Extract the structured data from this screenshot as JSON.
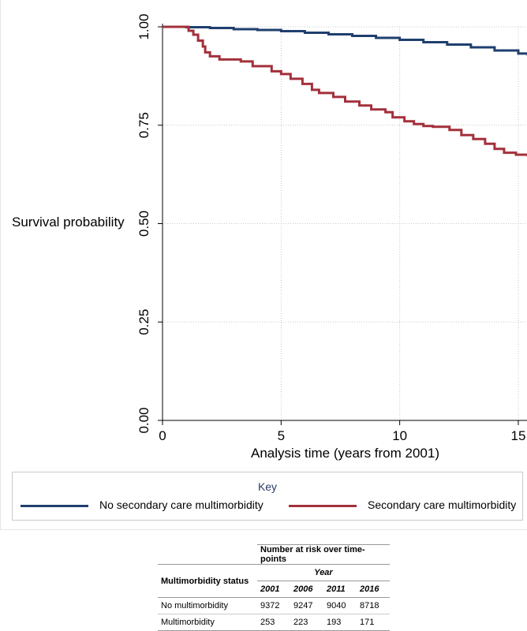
{
  "chart_data": {
    "type": "line",
    "title": "",
    "xlabel": "Analysis time (years from 2001)",
    "ylabel": "Survival probability",
    "xlim": [
      0,
      15.4
    ],
    "ylim": [
      0,
      1
    ],
    "x_ticks": [
      "0",
      "5",
      "10",
      "15"
    ],
    "y_ticks": [
      "0.00",
      "0.25",
      "0.50",
      "0.75",
      "1.00"
    ],
    "grid": true,
    "legend_position": "bottom",
    "series": [
      {
        "name": "No secondary care multimorbidity",
        "color": "#1f3f6e",
        "x": [
          0,
          0.5,
          1,
          2,
          3,
          4,
          5,
          6,
          7,
          8,
          9,
          10,
          11,
          12,
          13,
          14,
          15,
          15.4
        ],
        "values": [
          1.0,
          1.0,
          0.999,
          0.997,
          0.994,
          0.992,
          0.989,
          0.985,
          0.981,
          0.977,
          0.972,
          0.967,
          0.961,
          0.955,
          0.948,
          0.94,
          0.932,
          0.926
        ]
      },
      {
        "name": "Secondary care multimorbidity",
        "color": "#a3303b",
        "x": [
          0,
          0.9,
          1.1,
          1.3,
          1.5,
          1.7,
          1.8,
          2.0,
          2.4,
          3.3,
          3.8,
          4.6,
          5.0,
          5.4,
          5.9,
          6.3,
          6.6,
          7.2,
          7.7,
          8.3,
          8.8,
          9.4,
          9.7,
          10.2,
          10.6,
          11.0,
          11.4,
          12.1,
          12.6,
          13.1,
          13.6,
          14.0,
          14.4,
          14.9,
          15.4
        ],
        "values": [
          1.0,
          1.0,
          0.99,
          0.98,
          0.965,
          0.95,
          0.935,
          0.925,
          0.917,
          0.912,
          0.9,
          0.887,
          0.88,
          0.868,
          0.855,
          0.84,
          0.832,
          0.822,
          0.81,
          0.8,
          0.79,
          0.783,
          0.77,
          0.76,
          0.753,
          0.748,
          0.746,
          0.738,
          0.725,
          0.715,
          0.703,
          0.69,
          0.68,
          0.675,
          0.67
        ]
      }
    ]
  },
  "legend": {
    "title": "Key",
    "items": [
      "No secondary care multimorbidity",
      "Secondary care multimorbidity"
    ]
  },
  "risk_table": {
    "group_header": "Number at risk over time-points",
    "row_header": "Multimorbidity status",
    "year_header": "Year",
    "years": [
      "2001",
      "2006",
      "2011",
      "2016"
    ],
    "rows": [
      {
        "label": "No multimorbidity",
        "values": [
          "9372",
          "9247",
          "9040",
          "8718"
        ]
      },
      {
        "label": "Multimorbidity",
        "values": [
          "253",
          "223",
          "193",
          "171"
        ]
      }
    ]
  }
}
